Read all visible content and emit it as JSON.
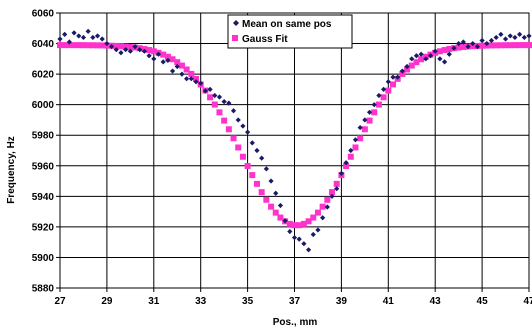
{
  "chart_data": {
    "type": "scatter",
    "xlabel": "Pos., mm",
    "ylabel": "Frequency, Hz",
    "xlim": [
      27,
      47
    ],
    "ylim": [
      5880,
      6060
    ],
    "x_ticks": [
      27,
      29,
      31,
      33,
      35,
      37,
      39,
      41,
      43,
      45,
      47
    ],
    "y_ticks": [
      5880,
      5900,
      5920,
      5940,
      5960,
      5980,
      6000,
      6020,
      6040,
      6060
    ],
    "grid": true,
    "legend_position": "top-center",
    "colors": {
      "mean": "#1a1a66",
      "gauss": "#ff33cc",
      "grid": "#000000"
    },
    "series": [
      {
        "name": "Mean on same pos",
        "marker": "diamond",
        "x": [
          27.0,
          27.2,
          27.4,
          27.6,
          27.8,
          28.0,
          28.2,
          28.4,
          28.6,
          28.8,
          29.0,
          29.2,
          29.4,
          29.6,
          29.8,
          30.0,
          30.2,
          30.4,
          30.6,
          30.8,
          31.0,
          31.2,
          31.4,
          31.6,
          31.8,
          32.0,
          32.2,
          32.4,
          32.6,
          32.8,
          33.0,
          33.2,
          33.4,
          33.6,
          33.8,
          34.0,
          34.2,
          34.4,
          34.6,
          34.8,
          35.0,
          35.2,
          35.4,
          35.6,
          35.8,
          36.0,
          36.2,
          36.4,
          36.6,
          36.8,
          37.0,
          37.2,
          37.4,
          37.6,
          37.8,
          38.0,
          38.2,
          38.4,
          38.6,
          38.8,
          39.0,
          39.2,
          39.4,
          39.6,
          39.8,
          40.0,
          40.2,
          40.4,
          40.6,
          40.8,
          41.0,
          41.2,
          41.4,
          41.6,
          41.8,
          42.0,
          42.2,
          42.4,
          42.6,
          42.8,
          43.0,
          43.2,
          43.4,
          43.6,
          43.8,
          44.0,
          44.2,
          44.4,
          44.6,
          44.8,
          45.0,
          45.2,
          45.4,
          45.6,
          45.8,
          46.0,
          46.2,
          46.4,
          46.6,
          46.8,
          47.0
        ],
        "y": [
          6043,
          6046,
          6041,
          6047,
          6045,
          6044,
          6048,
          6044,
          6045,
          6043,
          6040,
          6038,
          6036,
          6034,
          6036,
          6035,
          6038,
          6036,
          6035,
          6032,
          6030,
          6033,
          6028,
          6029,
          6022,
          6025,
          6020,
          6017,
          6017,
          6015,
          6014,
          6009,
          6010,
          6006,
          6005,
          6002,
          6001,
          5996,
          5990,
          5986,
          5982,
          5975,
          5970,
          5965,
          5958,
          5950,
          5942,
          5934,
          5924,
          5917,
          5913,
          5912,
          5909,
          5905,
          5915,
          5918,
          5926,
          5933,
          5940,
          5945,
          5955,
          5962,
          5970,
          5977,
          5985,
          5990,
          5995,
          6000,
          6006,
          6010,
          6015,
          6018,
          6018,
          6022,
          6025,
          6030,
          6032,
          6033,
          6030,
          6032,
          6035,
          6030,
          6028,
          6033,
          6037,
          6040,
          6041,
          6038,
          6040,
          6038,
          6042,
          6040,
          6042,
          6044,
          6046,
          6043,
          6045,
          6044,
          6046,
          6044,
          6045
        ]
      },
      {
        "name": "Gauss Fit",
        "marker": "square",
        "center": 37.1,
        "amplitude": 118,
        "sigma": 2.35,
        "baseline": 6039
      }
    ]
  }
}
